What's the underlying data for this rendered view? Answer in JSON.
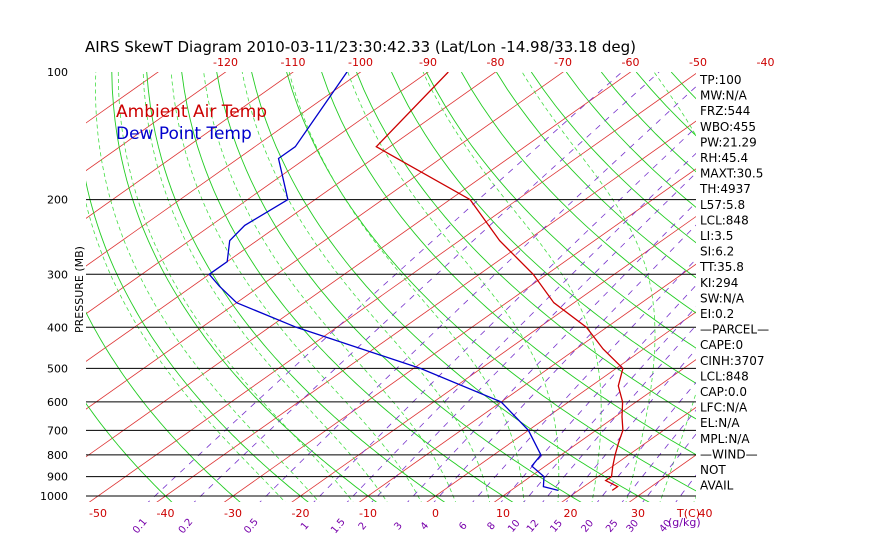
{
  "chart_data": {
    "type": "line",
    "title": "AIRS SkewT Diagram 2010-03-11/23:30:42.33 (Lat/Lon -14.98/33.18 deg)",
    "ylabel": "PRESSURE (MB)",
    "xlabel": "T(C)",
    "mixing_ratio_unit": "(g/kg)",
    "y_scale": "log",
    "ylim": [
      1000,
      100
    ],
    "xlim": [
      -50,
      40
    ],
    "pressure_ticks": [
      "100",
      "200",
      "300",
      "400",
      "500",
      "600",
      "700",
      "800",
      "900",
      "1000"
    ],
    "temp_ticks_bottom": [
      "-50",
      "-40",
      "-30",
      "-20",
      "-10",
      "0",
      "10",
      "20",
      "30",
      "40"
    ],
    "temp_ticks_top": [
      "-120",
      "-110",
      "-100",
      "-90",
      "-80",
      "-70",
      "-60",
      "-50",
      "-40"
    ],
    "mixing_ratio_ticks": [
      "0.1",
      "0.2",
      "0.5",
      "1",
      "1.5",
      "2",
      "3",
      "4",
      "6",
      "8",
      "10",
      "12",
      "15",
      "20",
      "25",
      "30",
      "40"
    ],
    "grid": true,
    "legend_position": "top-left",
    "series": [
      {
        "name": "Ambient Air Temp",
        "color": "#cc0000",
        "pressure": [
          100,
          150,
          200,
          250,
          300,
          350,
          400,
          450,
          500,
          550,
          600,
          650,
          700,
          750,
          800,
          850,
          900,
          920,
          950,
          970
        ],
        "temperature": [
          -87,
          -82,
          -57,
          -44,
          -32,
          -23,
          -13,
          -6,
          1,
          4,
          8,
          11,
          14,
          16,
          18,
          20,
          22,
          22,
          25,
          25
        ]
      },
      {
        "name": "Dew Point Temp",
        "color": "#0000cc",
        "pressure": [
          100,
          150,
          160,
          200,
          230,
          250,
          280,
          300,
          320,
          350,
          400,
          500,
          600,
          700,
          800,
          850,
          900,
          950,
          970
        ],
        "temperature": [
          -102,
          -94,
          -94,
          -84,
          -85,
          -84,
          -80,
          -80,
          -76,
          -70,
          -56,
          -29,
          -10,
          0,
          7,
          8,
          12,
          14,
          17
        ]
      }
    ]
  },
  "indices": [
    "TP:100",
    "MW:N/A",
    "FRZ:544",
    "WBO:455",
    "PW:21.29",
    "RH:45.4",
    "MAXT:30.5",
    "TH:4937",
    "L57:5.8",
    "LCL:848",
    "LI:3.5",
    "SI:6.2",
    "TT:35.8",
    "KI:294",
    "SW:N/A",
    "EI:0.2",
    "—PARCEL—",
    "CAPE:0",
    "CINH:3707",
    "LCL:848",
    "CAP:0.0",
    "LFC:N/A",
    "EL:N/A",
    "MPL:N/A",
    "—WIND—",
    "NOT",
    "AVAIL"
  ],
  "colors": {
    "temp_line": "#cc0000",
    "dew_line": "#0000cc",
    "isotherm": "#dd3333",
    "dry_adiabat": "#22cc22",
    "moist_adiabat": "#44dd44",
    "mixing_ratio": "#7733cc",
    "ticks": "#cc0000",
    "mix_ticks": "#7700aa",
    "text": "#000000"
  }
}
